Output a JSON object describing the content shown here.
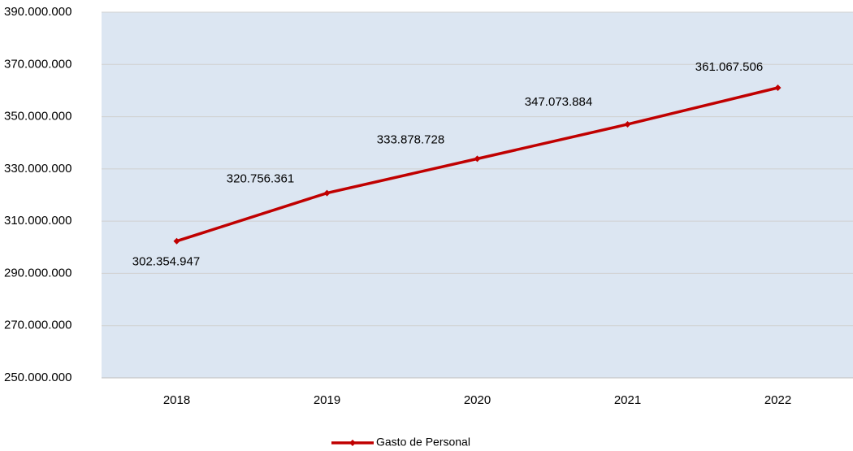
{
  "chart_data": {
    "type": "line",
    "categories": [
      "2018",
      "2019",
      "2020",
      "2021",
      "2022"
    ],
    "series": [
      {
        "name": "Gasto de Personal",
        "color": "#c00000",
        "values": [
          302354947,
          320756361,
          333878728,
          347073884,
          361067506
        ],
        "value_labels": [
          "302.354.947",
          "320.756.361",
          "333.878.728",
          "347.073.884",
          "361.067.506"
        ]
      }
    ],
    "ylim": [
      250000000,
      390000000
    ],
    "yticks": [
      {
        "value": 250000000,
        "label": "250.000.000"
      },
      {
        "value": 270000000,
        "label": "270.000.000"
      },
      {
        "value": 290000000,
        "label": "290.000.000"
      },
      {
        "value": 310000000,
        "label": "310.000.000"
      },
      {
        "value": 330000000,
        "label": "330.000.000"
      },
      {
        "value": 350000000,
        "label": "350.000.000"
      },
      {
        "value": 370000000,
        "label": "370.000.000"
      },
      {
        "value": 390000000,
        "label": "390.000.000"
      }
    ],
    "grid": true,
    "plot_background": "#dce6f2",
    "legend": "bottom"
  }
}
